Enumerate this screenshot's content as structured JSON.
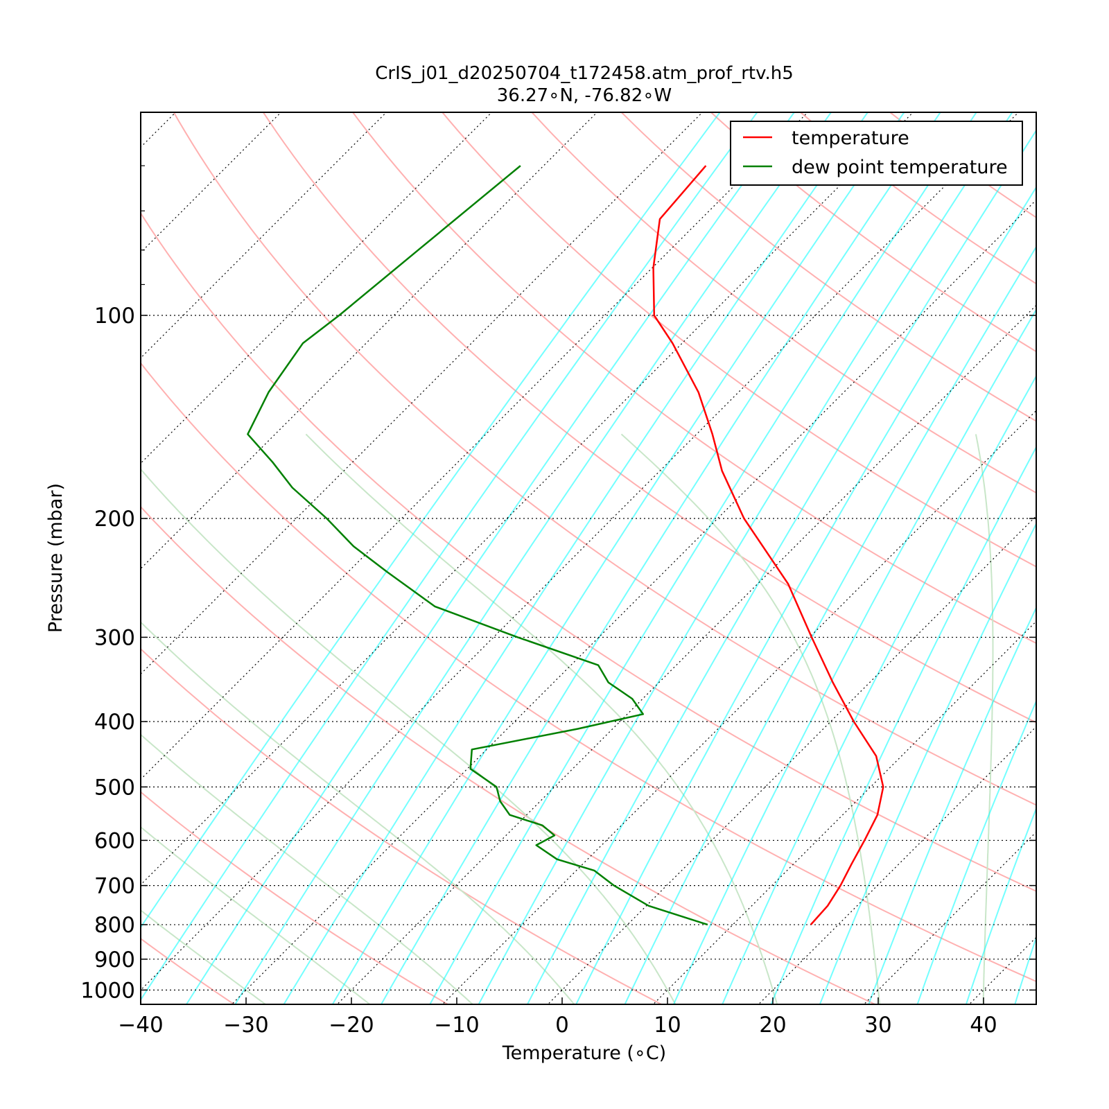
{
  "chart_data": {
    "type": "line",
    "title": "CrIS_j01_d20250704_t172458.atm_prof_rtv.h5",
    "subtitle": "36.27∘N, -76.82∘W",
    "xlabel": "Temperature (∘C)",
    "ylabel": "Pressure (mbar)",
    "xlim": [
      -40,
      45
    ],
    "ylim": [
      1050,
      50
    ],
    "y_scale": "log",
    "x_skewed": true,
    "xticks": [
      -40,
      -30,
      -20,
      -10,
      0,
      10,
      20,
      30,
      40
    ],
    "xtick_labels": [
      "−40",
      "−30",
      "−20",
      "−10",
      "0",
      "10",
      "20",
      "30",
      "40"
    ],
    "yticks": [
      100,
      200,
      300,
      400,
      500,
      600,
      700,
      800,
      900,
      1000
    ],
    "ytick_labels": [
      "100",
      "200",
      "300",
      "400",
      "500",
      "600",
      "700",
      "800",
      "900",
      "1000"
    ],
    "grid": true,
    "legend_position": "top-right",
    "series": [
      {
        "name": "temperature",
        "color": "#ff0000",
        "pressure": [
          800,
          750,
          700,
          650,
          600,
          550,
          500,
          450,
          400,
          350,
          300,
          250,
          200,
          170,
          150,
          130,
          110,
          100,
          85,
          72,
          60
        ],
        "values": [
          17.4,
          17.2,
          16.5,
          15.5,
          14.5,
          13.3,
          11.2,
          7.6,
          2.2,
          -3.5,
          -9.8,
          -17.1,
          -27.5,
          -34.1,
          -38.5,
          -43.8,
          -50.9,
          -55.3,
          -59.9,
          -63.9,
          -64.6
        ]
      },
      {
        "name": "dew point temperature",
        "color": "#008000",
        "pressure": [
          800,
          750,
          700,
          665,
          640,
          610,
          590,
          570,
          550,
          525,
          500,
          470,
          440,
          410,
          390,
          370,
          350,
          330,
          300,
          270,
          240,
          220,
          200,
          180,
          165,
          150,
          130,
          110,
          100,
          80,
          60
        ],
        "values": [
          7.6,
          0.2,
          -5.0,
          -8.3,
          -12.9,
          -16.2,
          -15.4,
          -17.5,
          -21.6,
          -23.8,
          -25.5,
          -29.7,
          -31.4,
          -23.3,
          -18.5,
          -21.0,
          -24.8,
          -27.4,
          -37.7,
          -48.5,
          -56.3,
          -61.9,
          -67.1,
          -73.3,
          -77.6,
          -82.6,
          -84.6,
          -86.0,
          -85.2,
          -83.9,
          -82.2
        ]
      }
    ],
    "background_lines": {
      "dry_adiabats": {
        "color": "#ffb0b0",
        "theta_values": [
          240,
          260,
          280,
          300,
          320,
          340,
          360,
          380,
          400,
          420,
          440,
          460,
          480,
          500,
          520
        ]
      },
      "moist_adiabats": {
        "color": "#c8e6c8",
        "base_temperatures_c": [
          -30,
          -20,
          -10,
          0,
          10,
          20,
          30,
          40,
          50
        ]
      },
      "mixing_ratio_lines": {
        "color": "#00ffff"
      },
      "isotherms": {
        "style": "dotted"
      },
      "isobars": {
        "style": "dotted"
      }
    }
  }
}
